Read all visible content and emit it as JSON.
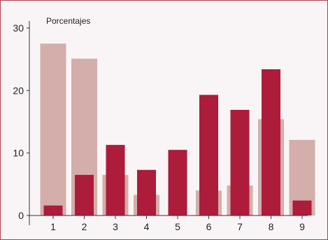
{
  "chart_data": {
    "type": "bar",
    "ylabel": "Porcentajes",
    "ylim": [
      0,
      30
    ],
    "yticks": [
      0,
      10,
      20,
      30
    ],
    "grid": false,
    "categories": [
      "1",
      "2",
      "3",
      "4",
      "5",
      "6",
      "7",
      "8",
      "9"
    ],
    "series": [
      {
        "color": "#d4aeab",
        "values": [
          27.5,
          25.1,
          6.5,
          3.3,
          0,
          4.0,
          4.8,
          15.4,
          12.1
        ]
      },
      {
        "color": "#ad1c3a",
        "values": [
          1.6,
          6.5,
          11.3,
          7.3,
          10.5,
          19.3,
          16.9,
          23.4,
          2.4
        ]
      }
    ]
  },
  "colors": {
    "frame_border": "#b0404a",
    "background": "#f9f5f6",
    "axis": "#333333"
  }
}
